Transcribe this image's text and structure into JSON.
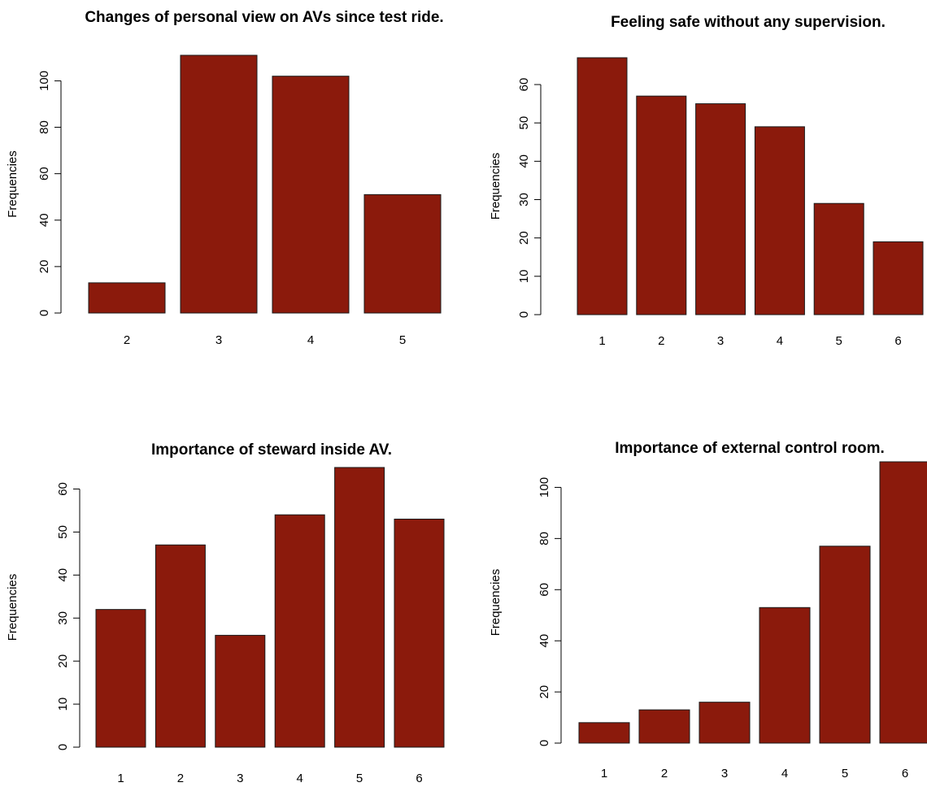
{
  "colors": {
    "bar_fill": "#8B1A0C",
    "bar_stroke": "#1a1a1a",
    "axis": "#000000"
  },
  "chart_data": [
    {
      "type": "bar",
      "title": "Changes of personal view on AVs since test ride.",
      "xlabel": "",
      "ylabel": "Frequencies",
      "categories": [
        "2",
        "3",
        "4",
        "5"
      ],
      "values": [
        13,
        111,
        102,
        51
      ],
      "ylim": [
        0,
        111
      ],
      "yticks": [
        0,
        20,
        40,
        60,
        80,
        100
      ],
      "grid": false,
      "legend": "none"
    },
    {
      "type": "bar",
      "title": "Feeling safe without any supervision.",
      "xlabel": "",
      "ylabel": "Frequencies",
      "categories": [
        "1",
        "2",
        "3",
        "4",
        "5",
        "6"
      ],
      "values": [
        67,
        57,
        55,
        49,
        29,
        19
      ],
      "ylim": [
        0,
        67
      ],
      "yticks": [
        0,
        10,
        20,
        30,
        40,
        50,
        60
      ],
      "grid": false,
      "legend": "none"
    },
    {
      "type": "bar",
      "title": "Importance of steward inside AV.",
      "xlabel": "",
      "ylabel": "Frequencies",
      "categories": [
        "1",
        "2",
        "3",
        "4",
        "5",
        "6"
      ],
      "values": [
        32,
        47,
        26,
        54,
        65,
        53
      ],
      "ylim": [
        0,
        65
      ],
      "yticks": [
        0,
        10,
        20,
        30,
        40,
        50,
        60
      ],
      "grid": false,
      "legend": "none"
    },
    {
      "type": "bar",
      "title": "Importance of external control room.",
      "xlabel": "",
      "ylabel": "Frequencies",
      "categories": [
        "1",
        "2",
        "3",
        "4",
        "5",
        "6"
      ],
      "values": [
        8,
        13,
        16,
        53,
        77,
        110
      ],
      "ylim": [
        0,
        110
      ],
      "yticks": [
        0,
        20,
        40,
        60,
        80,
        100
      ],
      "grid": false,
      "legend": "none"
    }
  ]
}
